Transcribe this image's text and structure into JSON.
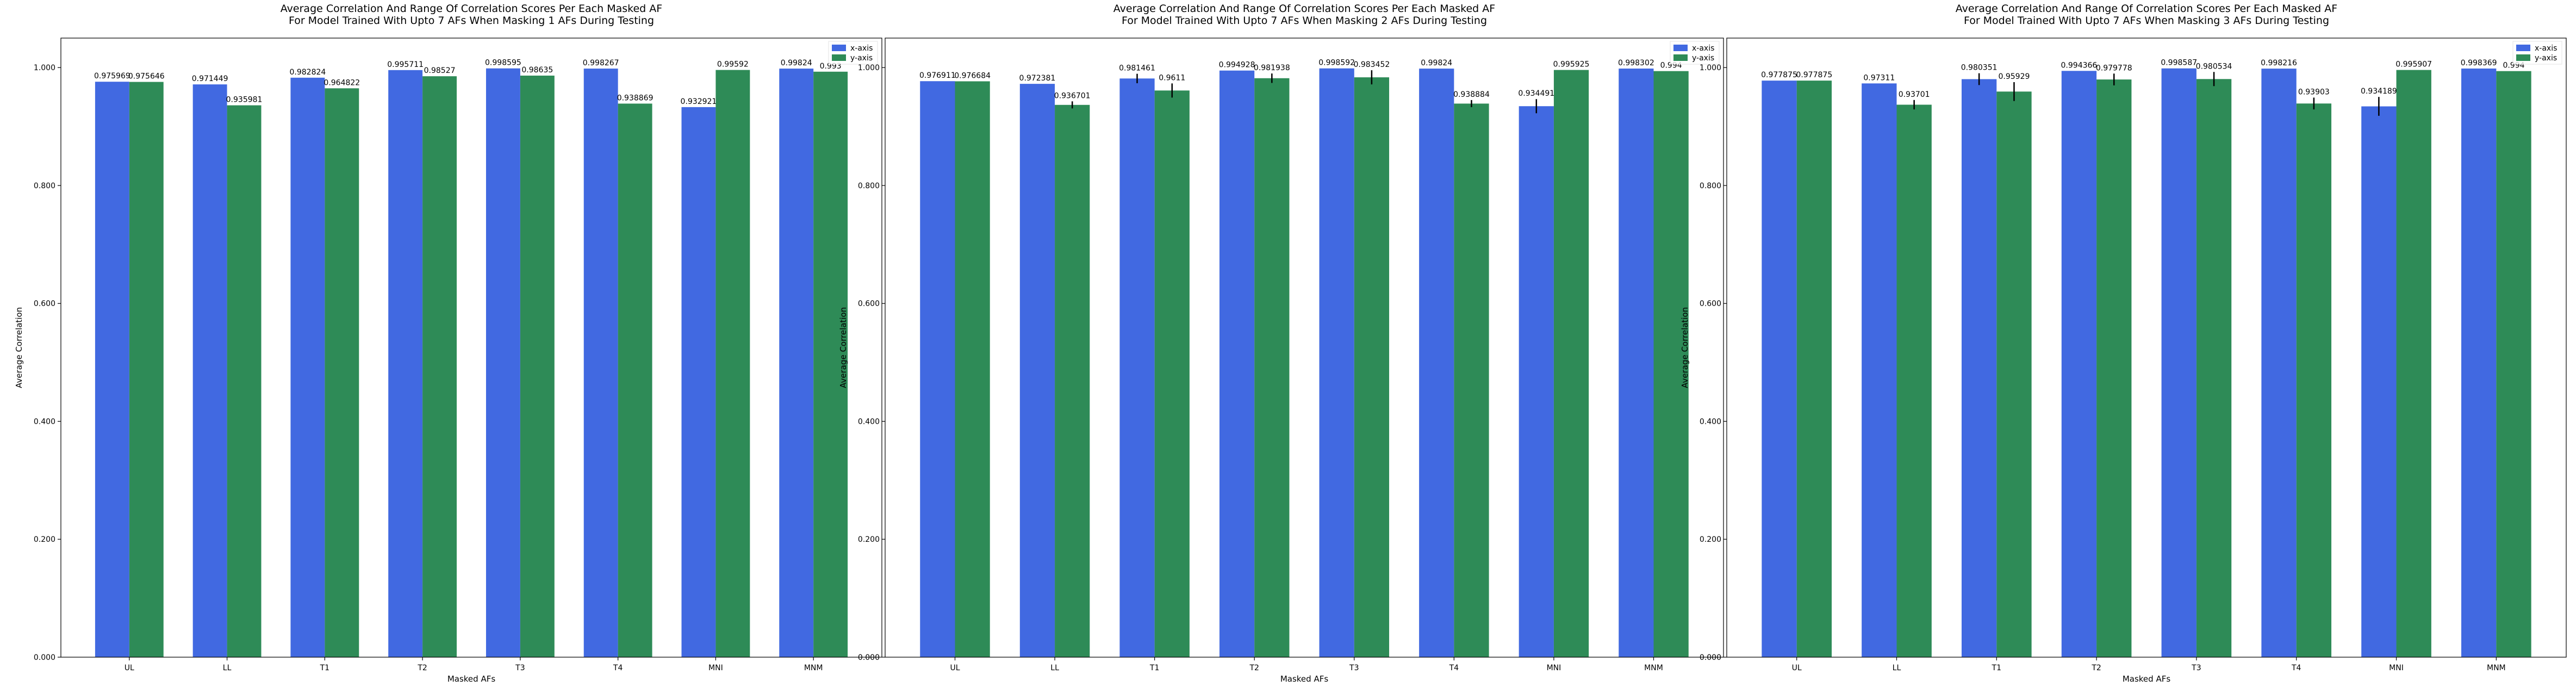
{
  "colors": {
    "x_axis": "#4169e1",
    "y_axis": "#2e8b57",
    "error_bar": "#000000"
  },
  "chart_data": [
    {
      "type": "bar",
      "title_line1": "Average Correlation And Range Of Correlation Scores Per Each Masked AF",
      "title_line2": "For Model Trained With Upto 7 AFs When Masking 1 AFs During Testing",
      "xlabel": "Masked AFs",
      "ylabel": "Average Correlation",
      "ylim": [
        0,
        1.05
      ],
      "yticks": [
        "0.000",
        "0.200",
        "0.400",
        "0.600",
        "0.800",
        "1.000"
      ],
      "categories": [
        "UL",
        "LL",
        "T1",
        "T2",
        "T3",
        "T4",
        "MNI",
        "MNM"
      ],
      "legend_position": "top-right",
      "series": [
        {
          "name": "x-axis",
          "values": [
            0.975969,
            0.971449,
            0.982824,
            0.995711,
            0.998595,
            0.998267,
            0.932921,
            0.99824
          ],
          "labels": [
            "0.975969",
            "0.971449",
            "0.982824",
            "0.995711",
            "0.998595",
            "0.998267",
            "0.932921",
            "0.99824"
          ],
          "errors": [
            0,
            0,
            0,
            0,
            0,
            0,
            0,
            0
          ]
        },
        {
          "name": "y-axis",
          "values": [
            0.975646,
            0.935981,
            0.964822,
            0.98527,
            0.98635,
            0.938869,
            0.99592,
            0.993
          ],
          "labels": [
            "0.975646",
            "0.935981",
            "0.964822",
            "0.98527",
            "0.98635",
            "0.938869",
            "0.99592",
            "0.993"
          ],
          "errors": [
            0,
            0,
            0,
            0,
            0,
            0,
            0,
            0
          ]
        }
      ]
    },
    {
      "type": "bar",
      "title_line1": "Average Correlation And Range Of Correlation Scores Per Each Masked AF",
      "title_line2": "For Model Trained With Upto 7 AFs When Masking 2 AFs During Testing",
      "xlabel": "Masked AFs",
      "ylabel": "Average Correlation",
      "ylim": [
        0,
        1.05
      ],
      "yticks": [
        "0.000",
        "0.200",
        "0.400",
        "0.600",
        "0.800",
        "1.000"
      ],
      "categories": [
        "UL",
        "LL",
        "T1",
        "T2",
        "T3",
        "T4",
        "MNI",
        "MNM"
      ],
      "legend_position": "top-right",
      "series": [
        {
          "name": "x-axis",
          "values": [
            0.976911,
            0.972381,
            0.981461,
            0.994928,
            0.998592,
            0.99824,
            0.934491,
            0.998302
          ],
          "labels": [
            "0.976911",
            "0.972381",
            "0.981461",
            "0.994928",
            "0.998592",
            "0.99824",
            "0.934491",
            "0.998302"
          ],
          "errors": [
            0,
            0,
            0.008,
            0,
            0,
            0,
            0.012,
            0
          ]
        },
        {
          "name": "y-axis",
          "values": [
            0.976684,
            0.936701,
            0.9611,
            0.981938,
            0.983452,
            0.938884,
            0.995925,
            0.994
          ],
          "labels": [
            "0.976684",
            "0.936701",
            "0.9611",
            "0.981938",
            "0.983452",
            "0.938884",
            "0.995925",
            "0.994"
          ],
          "errors": [
            0,
            0.006,
            0.012,
            0.008,
            0.012,
            0.006,
            0,
            0
          ]
        }
      ]
    },
    {
      "type": "bar",
      "title_line1": "Average Correlation And Range Of Correlation Scores Per Each Masked AF",
      "title_line2": "For Model Trained With Upto 7 AFs When Masking 3 AFs During Testing",
      "xlabel": "Masked AFs",
      "ylabel": "Average Correlation",
      "ylim": [
        0,
        1.05
      ],
      "yticks": [
        "0.000",
        "0.200",
        "0.400",
        "0.600",
        "0.800",
        "1.000"
      ],
      "categories": [
        "UL",
        "LL",
        "T1",
        "T2",
        "T3",
        "T4",
        "MNI",
        "MNM"
      ],
      "legend_position": "top-right",
      "series": [
        {
          "name": "x-axis",
          "values": [
            0.977875,
            0.97311,
            0.980351,
            0.994366,
            0.998587,
            0.998216,
            0.934189,
            0.998369
          ],
          "labels": [
            "0.977875",
            "0.97311",
            "0.980351",
            "0.994366",
            "0.998587",
            "0.998216",
            "0.934189",
            "0.998369"
          ],
          "errors": [
            0,
            0,
            0.01,
            0,
            0,
            0,
            0.016,
            0
          ]
        },
        {
          "name": "y-axis",
          "values": [
            0.977875,
            0.93701,
            0.95929,
            0.979778,
            0.980534,
            0.93903,
            0.995907,
            0.994
          ],
          "labels": [
            "0.977875",
            "0.93701",
            "0.95929",
            "0.979778",
            "0.980534",
            "0.93903",
            "0.995907",
            "0.994"
          ],
          "errors": [
            0,
            0.008,
            0.016,
            0.01,
            0.012,
            0.01,
            0,
            0
          ]
        }
      ]
    }
  ]
}
